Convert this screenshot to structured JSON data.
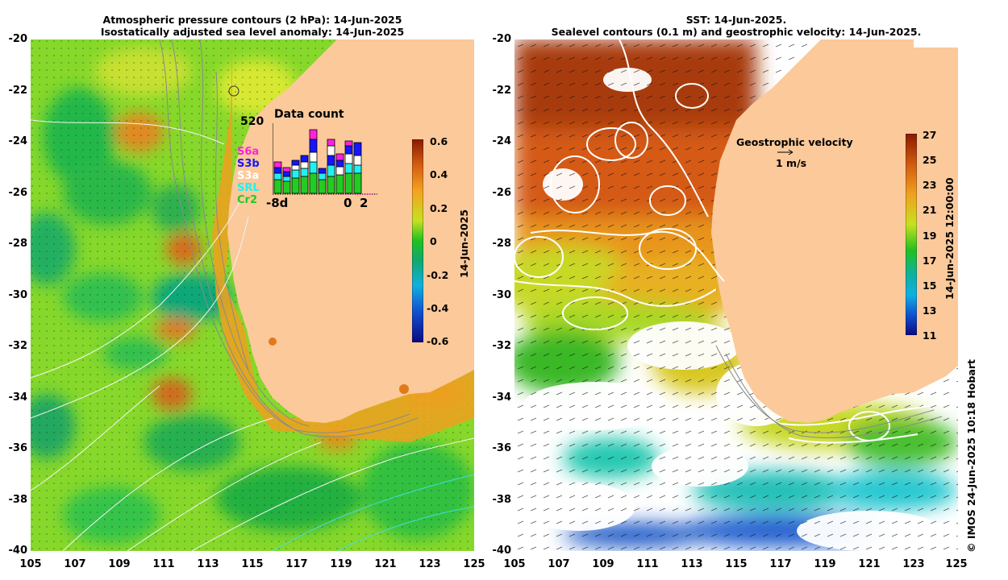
{
  "left_panel": {
    "title_line1": "Atmospheric pressure contours (2 hPa): 14-Jun-2025",
    "title_line2": "Isostatically adjusted sea level anomaly: 14-Jun-2025",
    "colorbar": {
      "ticks": [
        "0.6",
        "0.4",
        "0.2",
        "0",
        "-0.2",
        "-0.4",
        "-0.6"
      ],
      "label": "14-Jun-2025"
    },
    "inset": {
      "title": "Data count",
      "max_label": "520",
      "legend": [
        {
          "name": "S6a",
          "color": "#ff22dd"
        },
        {
          "name": "S3b",
          "color": "#1515ff"
        },
        {
          "name": "S3a",
          "color": "#ffffff"
        },
        {
          "name": "SRL",
          "color": "#22f0f0"
        },
        {
          "name": "Cr2",
          "color": "#22cc22"
        }
      ],
      "x_labels": [
        "-8d",
        "0",
        "2"
      ]
    }
  },
  "right_panel": {
    "title_line1": "SST: 14-Jun-2025.",
    "title_line2": "Sealevel contours (0.1 m) and geostrophic velocity: 14-Jun-2025.",
    "colorbar": {
      "ticks": [
        "27",
        "25",
        "23",
        "21",
        "19",
        "17",
        "15",
        "13",
        "11"
      ],
      "label": "14-Jun-2025 12:00:00"
    },
    "velocity_legend": {
      "title": "Geostrophic velocity",
      "scale": "1 m/s"
    }
  },
  "axes": {
    "lat_ticks": [
      "-20",
      "-22",
      "-24",
      "-26",
      "-28",
      "-30",
      "-32",
      "-34",
      "-36",
      "-38",
      "-40"
    ],
    "lon_ticks": [
      "105",
      "107",
      "109",
      "111",
      "113",
      "115",
      "117",
      "119",
      "121",
      "123",
      "125"
    ]
  },
  "copyright": "© IMOS 24-Jun-2025 10:18 Hobart",
  "colors": {
    "land": "#fbc99a",
    "ocean_base_left": "#7fd62a",
    "ocean_base_right": "#e07820"
  }
}
